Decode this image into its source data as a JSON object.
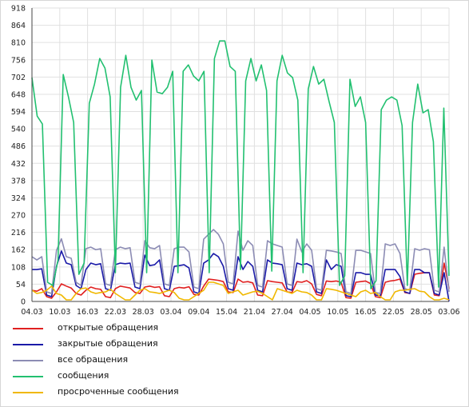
{
  "chart_data": {
    "type": "line",
    "ylim": [
      0,
      918
    ],
    "yticks": [
      "0",
      "54",
      "108",
      "162",
      "216",
      "270",
      "324",
      "378",
      "432",
      "486",
      "540",
      "594",
      "648",
      "702",
      "756",
      "810",
      "864",
      "918"
    ],
    "xticks": [
      "04.03",
      "10.03",
      "16.03",
      "22.03",
      "28.03",
      "03.04",
      "09.04",
      "15.04",
      "21.04",
      "27.04",
      "04.05",
      "10.05",
      "16.05",
      "22.05",
      "28.05",
      "03.06"
    ],
    "legend_position": "bottom",
    "grid": true,
    "series": [
      {
        "name": "открытые обращения",
        "color": "#e02020",
        "values": [
          35,
          32,
          40,
          15,
          10,
          30,
          55,
          48,
          42,
          25,
          20,
          35,
          45,
          40,
          38,
          15,
          12,
          40,
          48,
          45,
          42,
          28,
          25,
          45,
          48,
          44,
          46,
          18,
          15,
          40,
          44,
          42,
          46,
          22,
          20,
          48,
          70,
          68,
          66,
          62,
          30,
          28,
          70,
          60,
          62,
          58,
          20,
          18,
          65,
          62,
          60,
          58,
          30,
          28,
          62,
          60,
          65,
          55,
          22,
          18,
          64,
          62,
          64,
          60,
          12,
          10,
          60,
          62,
          64,
          56,
          15,
          12,
          60,
          64,
          66,
          70,
          28,
          25,
          85,
          88,
          90,
          90,
          20,
          18,
          120,
          40
        ]
      },
      {
        "name": "закрытые обращения",
        "color": "#1a1aa8",
        "values": [
          100,
          100,
          102,
          20,
          15,
          110,
          158,
          120,
          115,
          50,
          40,
          100,
          120,
          115,
          118,
          40,
          35,
          115,
          120,
          118,
          120,
          45,
          40,
          145,
          112,
          115,
          130,
          40,
          35,
          110,
          112,
          115,
          105,
          30,
          25,
          120,
          130,
          150,
          140,
          110,
          40,
          35,
          140,
          100,
          125,
          110,
          35,
          30,
          130,
          120,
          118,
          115,
          40,
          35,
          120,
          115,
          118,
          110,
          30,
          25,
          130,
          100,
          115,
          110,
          18,
          15,
          90,
          90,
          85,
          85,
          20,
          18,
          100,
          100,
          100,
          78,
          30,
          25,
          100,
          100,
          90,
          90,
          25,
          20,
          90,
          0
        ]
      },
      {
        "name": "все обращения",
        "color": "#8c8cb4",
        "values": [
          140,
          130,
          140,
          30,
          25,
          160,
          196,
          140,
          135,
          60,
          50,
          165,
          170,
          162,
          165,
          55,
          50,
          162,
          170,
          165,
          168,
          60,
          55,
          190,
          168,
          165,
          175,
          55,
          50,
          165,
          170,
          170,
          155,
          45,
          40,
          195,
          210,
          225,
          210,
          180,
          60,
          55,
          220,
          160,
          190,
          175,
          50,
          45,
          190,
          180,
          175,
          170,
          55,
          50,
          195,
          155,
          180,
          160,
          40,
          35,
          160,
          158,
          155,
          150,
          30,
          25,
          160,
          160,
          155,
          150,
          28,
          25,
          180,
          175,
          180,
          150,
          40,
          35,
          165,
          160,
          165,
          162,
          35,
          30,
          170,
          30
        ]
      },
      {
        "name": "сообщения",
        "color": "#22c070",
        "values": [
          700,
          580,
          555,
          60,
          50,
          130,
          710,
          640,
          560,
          85,
          120,
          620,
          680,
          760,
          730,
          640,
          90,
          670,
          770,
          670,
          630,
          660,
          90,
          755,
          655,
          650,
          670,
          720,
          90,
          720,
          740,
          705,
          690,
          720,
          90,
          760,
          815,
          815,
          735,
          720,
          100,
          690,
          760,
          690,
          740,
          660,
          95,
          690,
          770,
          715,
          700,
          630,
          90,
          665,
          735,
          680,
          695,
          625,
          560,
          50,
          80,
          695,
          610,
          640,
          560,
          40,
          65,
          600,
          630,
          640,
          630,
          550,
          50,
          560,
          680,
          590,
          600,
          500,
          45,
          605,
          80
        ]
      },
      {
        "name": "просроченные сообщения",
        "color": "#f0b800",
        "values": [
          35,
          25,
          28,
          35,
          48,
          25,
          20,
          5,
          5,
          25,
          40,
          42,
          30,
          25,
          28,
          30,
          38,
          25,
          15,
          5,
          5,
          20,
          35,
          40,
          30,
          28,
          25,
          30,
          35,
          28,
          10,
          5,
          5,
          15,
          25,
          35,
          60,
          60,
          55,
          50,
          25,
          30,
          35,
          20,
          25,
          30,
          32,
          25,
          15,
          5,
          40,
          35,
          30,
          25,
          35,
          30,
          28,
          20,
          5,
          5,
          40,
          38,
          35,
          30,
          25,
          20,
          15,
          30,
          35,
          25,
          28,
          15,
          5,
          5,
          30,
          35,
          35,
          38,
          40,
          32,
          30,
          15,
          5,
          5,
          10,
          5
        ]
      }
    ]
  }
}
